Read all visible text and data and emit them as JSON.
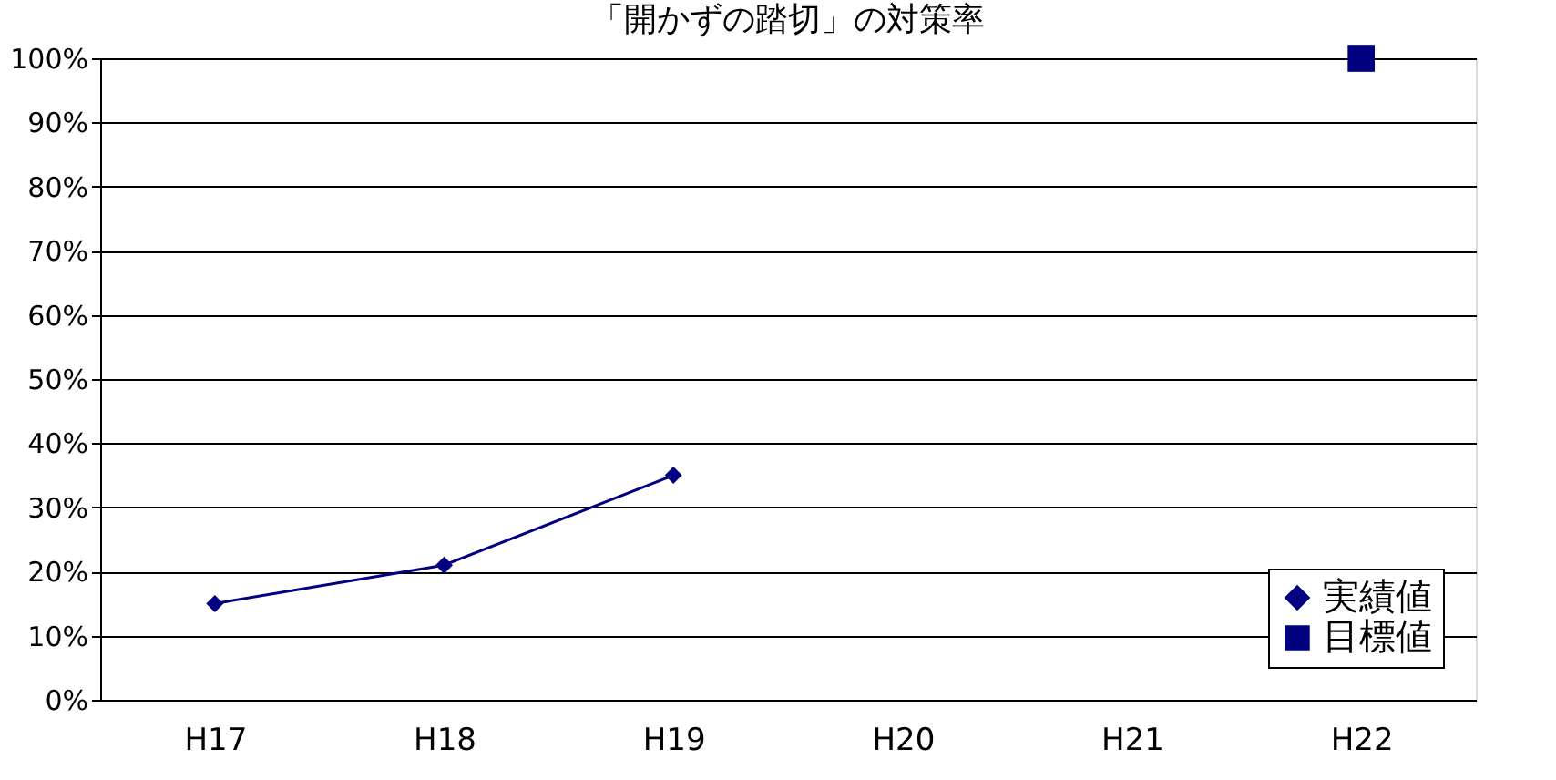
{
  "chart_data": {
    "type": "line",
    "title": "「開かずの踏切」の対策率",
    "categories": [
      "H17",
      "H18",
      "H19",
      "H20",
      "H21",
      "H22"
    ],
    "series": [
      {
        "name": "実績値",
        "type": "line",
        "color": "#000080",
        "marker": "diamond",
        "values": [
          15,
          21,
          35,
          null,
          null,
          null
        ]
      },
      {
        "name": "目標値",
        "type": "scatter",
        "color": "#000080",
        "marker": "square",
        "values": [
          null,
          null,
          null,
          null,
          null,
          100
        ]
      }
    ],
    "ylim": [
      0,
      100
    ],
    "yticks": [
      {
        "value": 0,
        "label": "0%"
      },
      {
        "value": 10,
        "label": "10%"
      },
      {
        "value": 20,
        "label": "20%"
      },
      {
        "value": 30,
        "label": "30%"
      },
      {
        "value": 40,
        "label": "40%"
      },
      {
        "value": 50,
        "label": "50%"
      },
      {
        "value": 60,
        "label": "60%"
      },
      {
        "value": 70,
        "label": "70%"
      },
      {
        "value": 80,
        "label": "80%"
      },
      {
        "value": 90,
        "label": "90%"
      },
      {
        "value": 100,
        "label": "100%"
      }
    ],
    "grid": "y",
    "legend": "bottom right"
  }
}
